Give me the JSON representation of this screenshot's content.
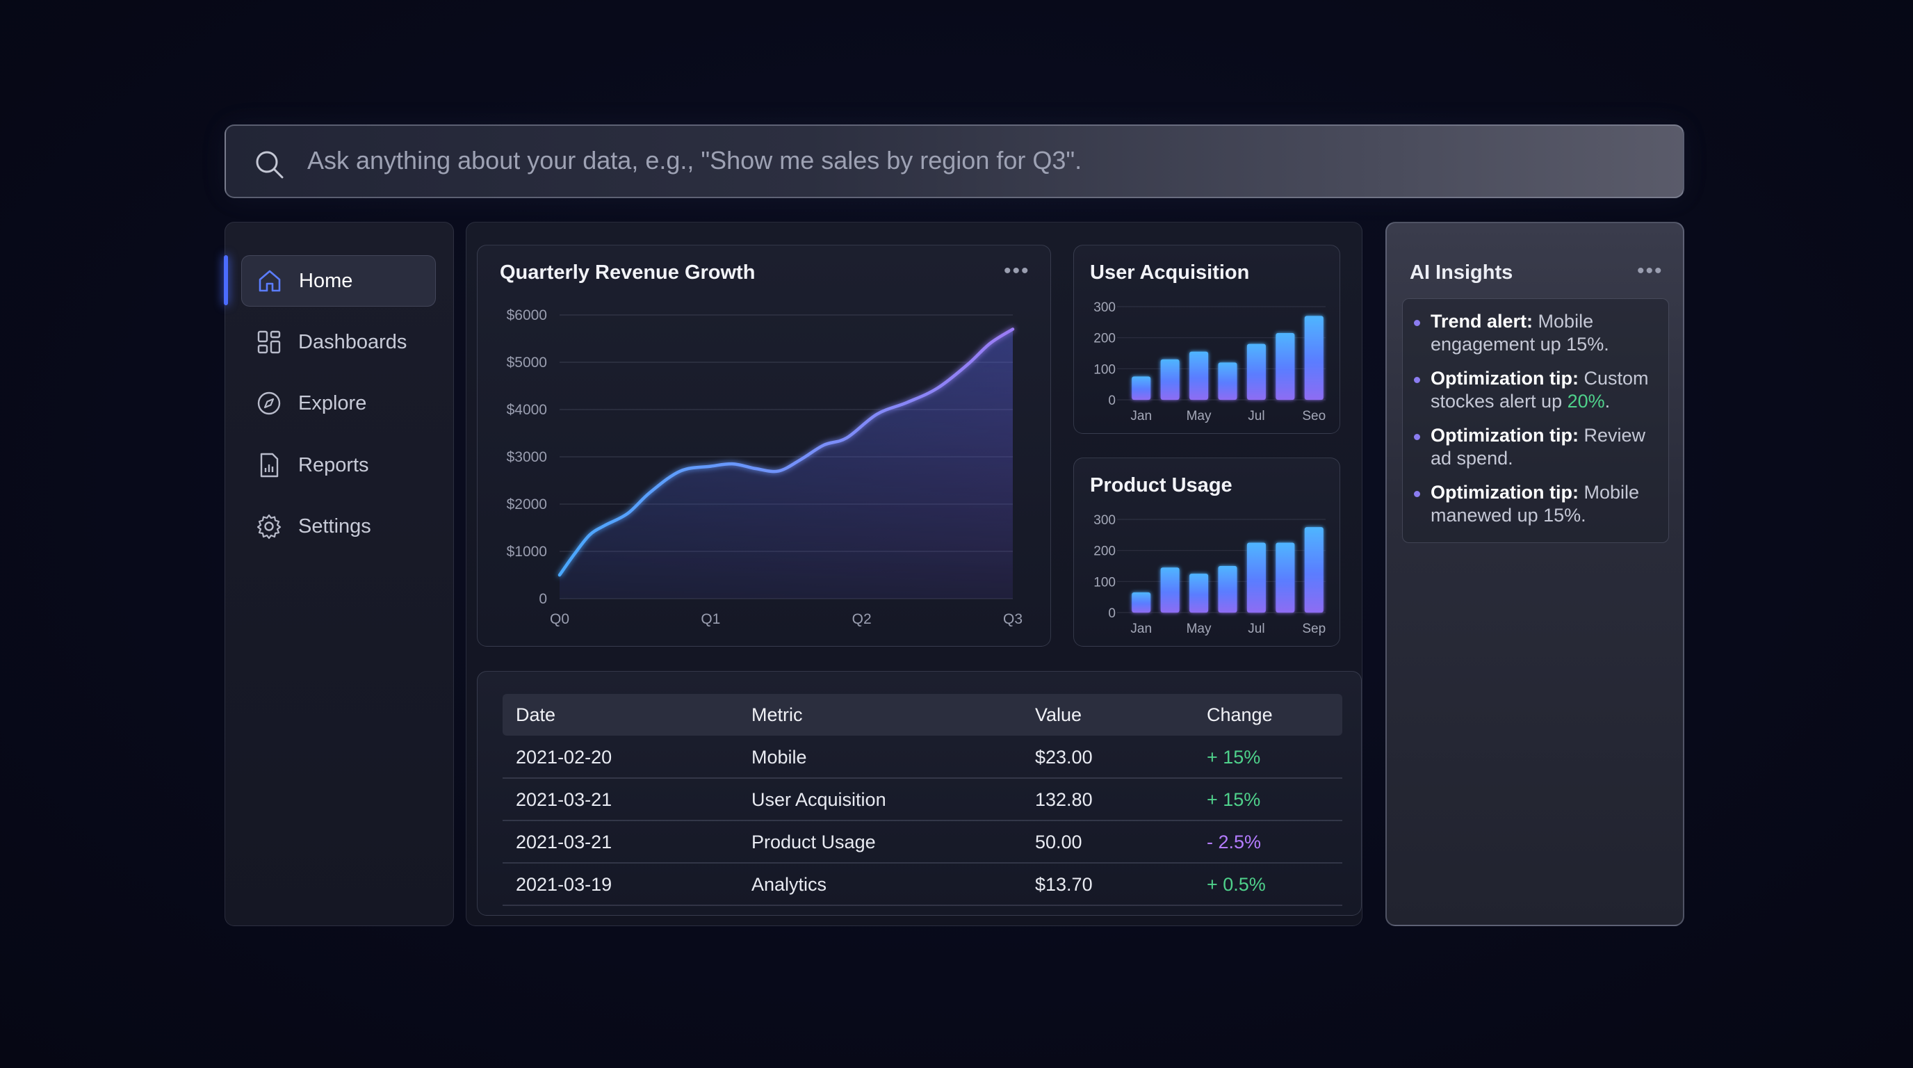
{
  "search": {
    "placeholder": "Ask anything about your data, e.g., \"Show me sales by region for Q3\"."
  },
  "sidebar": {
    "items": [
      {
        "label": "Home",
        "icon": "home-icon",
        "active": true
      },
      {
        "label": "Dashboards",
        "icon": "dashboard-icon",
        "active": false
      },
      {
        "label": "Explore",
        "icon": "compass-icon",
        "active": false
      },
      {
        "label": "Reports",
        "icon": "report-icon",
        "active": false
      },
      {
        "label": "Settings",
        "icon": "gear-icon",
        "active": false
      }
    ],
    "accent": "#4b6cff"
  },
  "revenue_card": {
    "title": "Quarterly Revenue Growth",
    "menu": "•••"
  },
  "acquisition_card": {
    "title": "User Acquisition"
  },
  "usage_card": {
    "title": "Product Usage"
  },
  "chart_data": [
    {
      "type": "area",
      "title": "Quarterly Revenue Growth",
      "x_ticks": [
        "Q0",
        "Q1",
        "Q2",
        "Q3"
      ],
      "y_ticks": [
        "0",
        "$1000",
        "$2000",
        "$3000",
        "$4000",
        "$5000",
        "$6000"
      ],
      "ylim": [
        0,
        6000
      ],
      "x": [
        0,
        0.1,
        0.2,
        0.3,
        0.45,
        0.6,
        0.8,
        1.0,
        1.15,
        1.3,
        1.45,
        1.6,
        1.75,
        1.9,
        2.1,
        2.3,
        2.5,
        2.7,
        2.85,
        3.0
      ],
      "values": [
        500,
        950,
        1350,
        1550,
        1800,
        2250,
        2700,
        2800,
        2850,
        2750,
        2700,
        2950,
        3250,
        3400,
        3900,
        4150,
        4450,
        4950,
        5400,
        5700
      ],
      "colors": [
        "#4aa8ff",
        "#9b7cf5"
      ]
    },
    {
      "type": "bar",
      "title": "User Acquisition",
      "x_ticks": [
        "Jan",
        "May",
        "Jul",
        "Seo"
      ],
      "y_ticks": [
        "0",
        "100",
        "200",
        "300"
      ],
      "ylim": [
        0,
        300
      ],
      "values": [
        75,
        130,
        155,
        120,
        180,
        215,
        270
      ]
    },
    {
      "type": "bar",
      "title": "Product Usage",
      "x_ticks": [
        "Jan",
        "May",
        "Jul",
        "Sep"
      ],
      "y_ticks": [
        "0",
        "100",
        "200",
        "300"
      ],
      "ylim": [
        0,
        300
      ],
      "values": [
        65,
        145,
        125,
        150,
        225,
        225,
        275
      ]
    }
  ],
  "table": {
    "headers": [
      "Date",
      "Metric",
      "Value",
      "Change"
    ],
    "rows": [
      {
        "date": "2021-02-20",
        "metric": "Mobile",
        "value": "$23.00",
        "change": "+ 15%",
        "trend": "up"
      },
      {
        "date": "2021-03-21",
        "metric": "User Acquisition",
        "value": "132.80",
        "change": "+ 15%",
        "trend": "up"
      },
      {
        "date": "2021-03-21",
        "metric": "Product Usage",
        "value": "50.00",
        "change": "- 2.5%",
        "trend": "down"
      },
      {
        "date": "2021-03-19",
        "metric": "Analytics",
        "value": "$13.70",
        "change": "+ 0.5%",
        "trend": "up"
      }
    ],
    "colors": {
      "up": "#4fd18b",
      "down": "#b47cff"
    }
  },
  "insights": {
    "title": "AI Insights",
    "menu": "•••",
    "items": [
      {
        "label": "Trend alert:",
        "text": " Mobile engagement up 15%."
      },
      {
        "label": "Optimization tip:",
        "text": " Custom stockes alert up ",
        "highlight": "20%",
        "tail": "."
      },
      {
        "label": "Optimization tip:",
        "text": " Review ad spend."
      },
      {
        "label": "Optimization tip:",
        "text": " Mobile manewed up 15%."
      }
    ],
    "highlight_color": "#4fd18b"
  }
}
